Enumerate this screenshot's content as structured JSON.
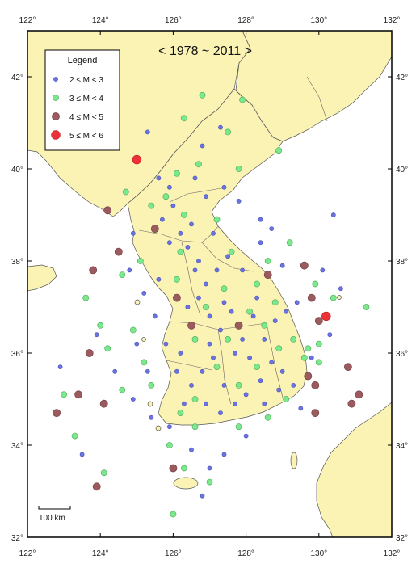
{
  "map": {
    "period": "< 1978 ~ 2011 >",
    "lon_range": [
      122,
      132
    ],
    "lat_range": [
      32,
      43
    ],
    "lon_ticks": [
      {
        "value": 122,
        "label": "122°"
      },
      {
        "value": 124,
        "label": "124°"
      },
      {
        "value": 126,
        "label": "126°"
      },
      {
        "value": 128,
        "label": "128°"
      },
      {
        "value": 130,
        "label": "130°"
      },
      {
        "value": 132,
        "label": "132°"
      }
    ],
    "lat_ticks": [
      {
        "value": 32,
        "label": "32°"
      },
      {
        "value": 34,
        "label": "34°"
      },
      {
        "value": 36,
        "label": "36°"
      },
      {
        "value": 38,
        "label": "38°"
      },
      {
        "value": 40,
        "label": "40°"
      },
      {
        "value": 42,
        "label": "42°"
      }
    ],
    "colors": {
      "sea": "#ffffff",
      "land": "#fbf3b4",
      "border": "#555555",
      "frame": "#000000"
    },
    "legend": {
      "title": "Legend",
      "placement": "top-left",
      "classes": [
        {
          "label": "2 ≤ M < 3",
          "color": "#6a73e0",
          "stroke": "#4a52b8",
          "size": "small"
        },
        {
          "label": "3 ≤ M < 4",
          "color": "#7be88c",
          "stroke": "#4aa85a",
          "size": "medium"
        },
        {
          "label": "4 ≤ M < 5",
          "color": "#9a5a5e",
          "stroke": "#6e3a3e",
          "size": "large"
        },
        {
          "label": "5 ≤ M < 6",
          "color": "#ee3038",
          "stroke": "#b81a20",
          "size": "xlarge"
        }
      ]
    },
    "scale_bar": {
      "label": "100 km"
    },
    "events": {
      "m5": [
        [
          125.0,
          40.2
        ],
        [
          130.2,
          36.8
        ]
      ],
      "m4": [
        [
          124.2,
          39.1
        ],
        [
          125.5,
          38.7
        ],
        [
          124.5,
          38.2
        ],
        [
          123.8,
          37.8
        ],
        [
          123.7,
          36.0
        ],
        [
          123.4,
          35.1
        ],
        [
          124.1,
          34.9
        ],
        [
          122.8,
          34.7
        ],
        [
          123.9,
          33.1
        ],
        [
          126.0,
          33.5
        ],
        [
          127.8,
          36.6
        ],
        [
          128.6,
          37.7
        ],
        [
          129.6,
          37.9
        ],
        [
          129.8,
          37.2
        ],
        [
          130.0,
          36.7
        ],
        [
          129.7,
          35.5
        ],
        [
          129.9,
          35.3
        ],
        [
          130.8,
          35.7
        ],
        [
          131.1,
          35.1
        ],
        [
          130.9,
          34.9
        ],
        [
          129.9,
          34.7
        ],
        [
          126.1,
          37.2
        ],
        [
          126.5,
          36.6
        ]
      ],
      "m3": [
        [
          126.3,
          41.1
        ],
        [
          126.8,
          41.6
        ],
        [
          127.9,
          41.5
        ],
        [
          127.5,
          40.8
        ],
        [
          128.9,
          40.4
        ],
        [
          126.7,
          40.1
        ],
        [
          127.8,
          40.0
        ],
        [
          126.1,
          39.9
        ],
        [
          124.7,
          39.5
        ],
        [
          125.4,
          39.2
        ],
        [
          125.8,
          39.4
        ],
        [
          126.3,
          39.0
        ],
        [
          127.2,
          38.9
        ],
        [
          125.1,
          38.0
        ],
        [
          124.6,
          37.7
        ],
        [
          123.6,
          37.2
        ],
        [
          124.0,
          36.6
        ],
        [
          124.2,
          36.1
        ],
        [
          124.9,
          36.5
        ],
        [
          125.2,
          35.8
        ],
        [
          124.6,
          35.2
        ],
        [
          125.4,
          35.3
        ],
        [
          126.2,
          34.7
        ],
        [
          126.6,
          34.4
        ],
        [
          125.9,
          34.0
        ],
        [
          126.3,
          33.5
        ],
        [
          126.0,
          32.5
        ],
        [
          127.0,
          33.2
        ],
        [
          127.8,
          34.4
        ],
        [
          128.6,
          34.6
        ],
        [
          128.9,
          36.1
        ],
        [
          128.1,
          36.9
        ],
        [
          127.4,
          37.4
        ],
        [
          126.9,
          37.0
        ],
        [
          128.3,
          37.5
        ],
        [
          128.8,
          37.1
        ],
        [
          129.3,
          36.3
        ],
        [
          129.6,
          35.9
        ],
        [
          130.0,
          36.2
        ],
        [
          129.9,
          37.5
        ],
        [
          129.2,
          38.4
        ],
        [
          128.6,
          38.0
        ],
        [
          127.6,
          38.2
        ],
        [
          126.2,
          38.2
        ],
        [
          126.1,
          37.6
        ],
        [
          126.6,
          36.3
        ],
        [
          127.2,
          35.7
        ],
        [
          127.8,
          35.3
        ],
        [
          128.3,
          35.7
        ],
        [
          129.1,
          35.0
        ],
        [
          130.0,
          35.8
        ],
        [
          130.4,
          37.2
        ],
        [
          131.3,
          37.0
        ],
        [
          123.0,
          35.1
        ],
        [
          123.3,
          34.2
        ],
        [
          124.1,
          33.4
        ],
        [
          126.6,
          35.0
        ],
        [
          127.5,
          36.3
        ],
        [
          128.5,
          36.6
        ],
        [
          129.7,
          36.1
        ]
      ],
      "m2": [
        [
          125.3,
          40.8
        ],
        [
          126.6,
          39.8
        ],
        [
          126.9,
          39.4
        ],
        [
          127.4,
          39.6
        ],
        [
          128.4,
          38.9
        ],
        [
          130.4,
          39.0
        ],
        [
          125.9,
          39.6
        ],
        [
          126.0,
          39.2
        ],
        [
          125.7,
          38.9
        ],
        [
          126.2,
          38.6
        ],
        [
          125.9,
          38.4
        ],
        [
          126.5,
          38.8
        ],
        [
          126.4,
          38.3
        ],
        [
          127.1,
          38.6
        ],
        [
          127.5,
          38.1
        ],
        [
          127.9,
          37.8
        ],
        [
          128.4,
          38.4
        ],
        [
          126.6,
          37.8
        ],
        [
          126.9,
          37.5
        ],
        [
          127.2,
          37.8
        ],
        [
          126.4,
          37.0
        ],
        [
          126.7,
          37.2
        ],
        [
          127.0,
          36.8
        ],
        [
          127.3,
          36.5
        ],
        [
          127.6,
          36.9
        ],
        [
          127.9,
          36.3
        ],
        [
          128.2,
          36.8
        ],
        [
          128.5,
          36.3
        ],
        [
          128.8,
          36.7
        ],
        [
          129.1,
          36.9
        ],
        [
          129.4,
          37.1
        ],
        [
          128.1,
          35.9
        ],
        [
          128.4,
          35.4
        ],
        [
          128.7,
          35.8
        ],
        [
          129.0,
          35.6
        ],
        [
          129.3,
          35.3
        ],
        [
          127.4,
          35.3
        ],
        [
          127.1,
          35.9
        ],
        [
          126.8,
          35.6
        ],
        [
          126.5,
          35.3
        ],
        [
          126.9,
          34.9
        ],
        [
          127.3,
          34.7
        ],
        [
          127.7,
          34.9
        ],
        [
          128.0,
          35.1
        ],
        [
          126.3,
          34.9
        ],
        [
          126.1,
          35.6
        ],
        [
          125.8,
          36.2
        ],
        [
          125.5,
          36.8
        ],
        [
          125.2,
          37.3
        ],
        [
          124.8,
          37.8
        ],
        [
          125.6,
          37.6
        ],
        [
          125.0,
          36.2
        ],
        [
          124.4,
          35.6
        ],
        [
          124.9,
          35.0
        ],
        [
          125.4,
          34.6
        ],
        [
          125.9,
          34.4
        ],
        [
          126.5,
          33.9
        ],
        [
          127.0,
          33.5
        ],
        [
          126.8,
          32.9
        ],
        [
          127.4,
          33.8
        ],
        [
          128.0,
          34.2
        ],
        [
          128.5,
          34.9
        ],
        [
          129.5,
          34.8
        ],
        [
          129.8,
          35.9
        ],
        [
          130.3,
          36.4
        ],
        [
          130.6,
          37.4
        ],
        [
          130.1,
          37.8
        ],
        [
          129.0,
          37.9
        ],
        [
          128.7,
          38.7
        ],
        [
          127.8,
          39.3
        ],
        [
          126.8,
          40.5
        ],
        [
          127.3,
          40.9
        ],
        [
          125.6,
          39.8
        ],
        [
          124.9,
          38.6
        ],
        [
          123.9,
          36.4
        ],
        [
          122.9,
          35.7
        ],
        [
          123.5,
          33.8
        ],
        [
          128.3,
          37.2
        ],
        [
          127.7,
          36.0
        ],
        [
          128.9,
          35.2
        ],
        [
          127.0,
          36.2
        ],
        [
          126.2,
          36.0
        ],
        [
          125.3,
          35.6
        ],
        [
          126.7,
          38.0
        ],
        [
          127.4,
          37.1
        ]
      ]
    }
  }
}
